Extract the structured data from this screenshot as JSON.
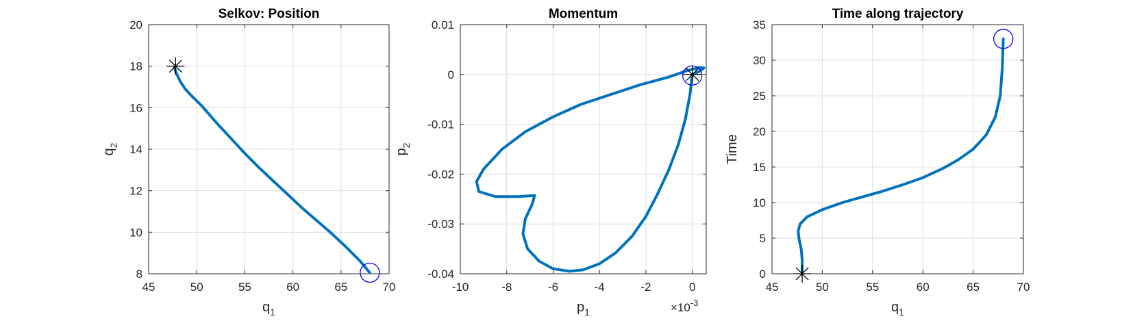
{
  "colors": {
    "line": "#0072BD",
    "start_marker": "#0000FF",
    "end_marker": "#000000"
  },
  "chart_data": [
    {
      "type": "line",
      "title": "Selkov: Position",
      "xlabel": "q",
      "xlabel_sub": "1",
      "ylabel": "q",
      "ylabel_sub": "2",
      "xlim": [
        45,
        70
      ],
      "ylim": [
        8,
        20
      ],
      "xticks": [
        45,
        50,
        55,
        60,
        65,
        70
      ],
      "yticks": [
        8,
        10,
        12,
        14,
        16,
        18,
        20
      ],
      "xtick_labels": [
        "45",
        "50",
        "55",
        "60",
        "65",
        "70"
      ],
      "ytick_labels": [
        "8",
        "10",
        "12",
        "14",
        "16",
        "18",
        "20"
      ],
      "grid": true,
      "exponent_label": "",
      "series": [
        {
          "x": [
            68.0,
            67.0,
            65.5,
            64.0,
            62.5,
            61.0,
            59.5,
            58.0,
            56.5,
            55.0,
            53.5,
            52.0,
            50.5,
            49.5,
            48.8,
            48.3,
            48.0,
            47.8,
            47.7,
            47.8
          ],
          "y": [
            8.05,
            8.6,
            9.3,
            9.95,
            10.55,
            11.15,
            11.8,
            12.45,
            13.1,
            13.8,
            14.55,
            15.3,
            16.1,
            16.55,
            16.9,
            17.25,
            17.55,
            17.75,
            17.95,
            18.0
          ]
        }
      ],
      "start_marker": {
        "type": "circle",
        "x": 68.0,
        "y": 8.05
      },
      "end_marker": {
        "type": "asterisk",
        "x": 47.8,
        "y": 18.0
      }
    },
    {
      "type": "line",
      "title": "Momentum",
      "xlabel": "p",
      "xlabel_sub": "1",
      "ylabel": "p",
      "ylabel_sub": "2",
      "xlim": [
        -0.01,
        0.0006
      ],
      "ylim": [
        -0.04,
        0.01
      ],
      "xticks": [
        -0.01,
        -0.008,
        -0.006,
        -0.004,
        -0.002,
        0
      ],
      "yticks": [
        -0.04,
        -0.03,
        -0.02,
        -0.01,
        0,
        0.01
      ],
      "xtick_labels": [
        "-10",
        "-8",
        "-6",
        "-4",
        "-2",
        "0"
      ],
      "ytick_labels": [
        "-0.04",
        "-0.03",
        "-0.02",
        "-0.01",
        "0",
        "0.01"
      ],
      "exponent_label": "×10",
      "exponent_power": "-3",
      "grid": true,
      "series": [
        {
          "x": [
            0,
            -0.0001,
            -0.0003,
            -0.0006,
            -0.001,
            -0.0015,
            -0.002,
            -0.0026,
            -0.0033,
            -0.004,
            -0.0047,
            -0.0053,
            -0.006,
            -0.0066,
            -0.0071,
            -0.0073,
            -0.0072,
            -0.0069,
            -0.0068,
            -0.0075,
            -0.0085,
            -0.0092,
            -0.0093,
            -0.009,
            -0.0082,
            -0.0072,
            -0.006,
            -0.0048,
            -0.0035,
            -0.0022,
            -0.001,
            -0.0002,
            0.0003,
            0.0005,
            0.0003,
            0
          ],
          "y": [
            0,
            -0.004,
            -0.009,
            -0.014,
            -0.019,
            -0.024,
            -0.0285,
            -0.0325,
            -0.0358,
            -0.038,
            -0.0392,
            -0.0395,
            -0.039,
            -0.0375,
            -0.035,
            -0.032,
            -0.029,
            -0.026,
            -0.0243,
            -0.0245,
            -0.0245,
            -0.0235,
            -0.0215,
            -0.019,
            -0.015,
            -0.0115,
            -0.0085,
            -0.006,
            -0.004,
            -0.002,
            -0.0005,
            0.0008,
            0.0014,
            0.0013,
            0.0006,
            0
          ]
        }
      ],
      "start_marker": {
        "type": "circle",
        "x": 0,
        "y": -0.0002
      },
      "end_marker": {
        "type": "asterisk",
        "x": 0,
        "y": 0
      }
    },
    {
      "type": "line",
      "title": "Time along trajectory",
      "xlabel": "q",
      "xlabel_sub": "1",
      "ylabel": "Time",
      "ylabel_sub": "",
      "xlim": [
        45,
        70
      ],
      "ylim": [
        0,
        35
      ],
      "xticks": [
        45,
        50,
        55,
        60,
        65,
        70
      ],
      "yticks": [
        0,
        5,
        10,
        15,
        20,
        25,
        30,
        35
      ],
      "xtick_labels": [
        "45",
        "50",
        "55",
        "60",
        "65",
        "70"
      ],
      "ytick_labels": [
        "0",
        "5",
        "10",
        "15",
        "20",
        "25",
        "30",
        "35"
      ],
      "grid": true,
      "exponent_label": "",
      "series": [
        {
          "x": [
            48.0,
            48.0,
            47.9,
            47.7,
            47.6,
            47.8,
            48.5,
            50.0,
            52.0,
            54.0,
            56.0,
            58.0,
            60.0,
            62.0,
            63.5,
            65.0,
            66.3,
            67.2,
            67.7,
            67.9,
            68.0
          ],
          "y": [
            0,
            2,
            3.5,
            4.8,
            6.0,
            7.0,
            8.0,
            9.0,
            10.0,
            10.8,
            11.6,
            12.5,
            13.5,
            14.8,
            16.0,
            17.5,
            19.5,
            22.0,
            25.0,
            29.0,
            33.0
          ]
        }
      ],
      "start_marker": {
        "type": "circle",
        "x": 68.0,
        "y": 33.0
      },
      "end_marker": {
        "type": "asterisk",
        "x": 48.0,
        "y": 0
      }
    }
  ]
}
